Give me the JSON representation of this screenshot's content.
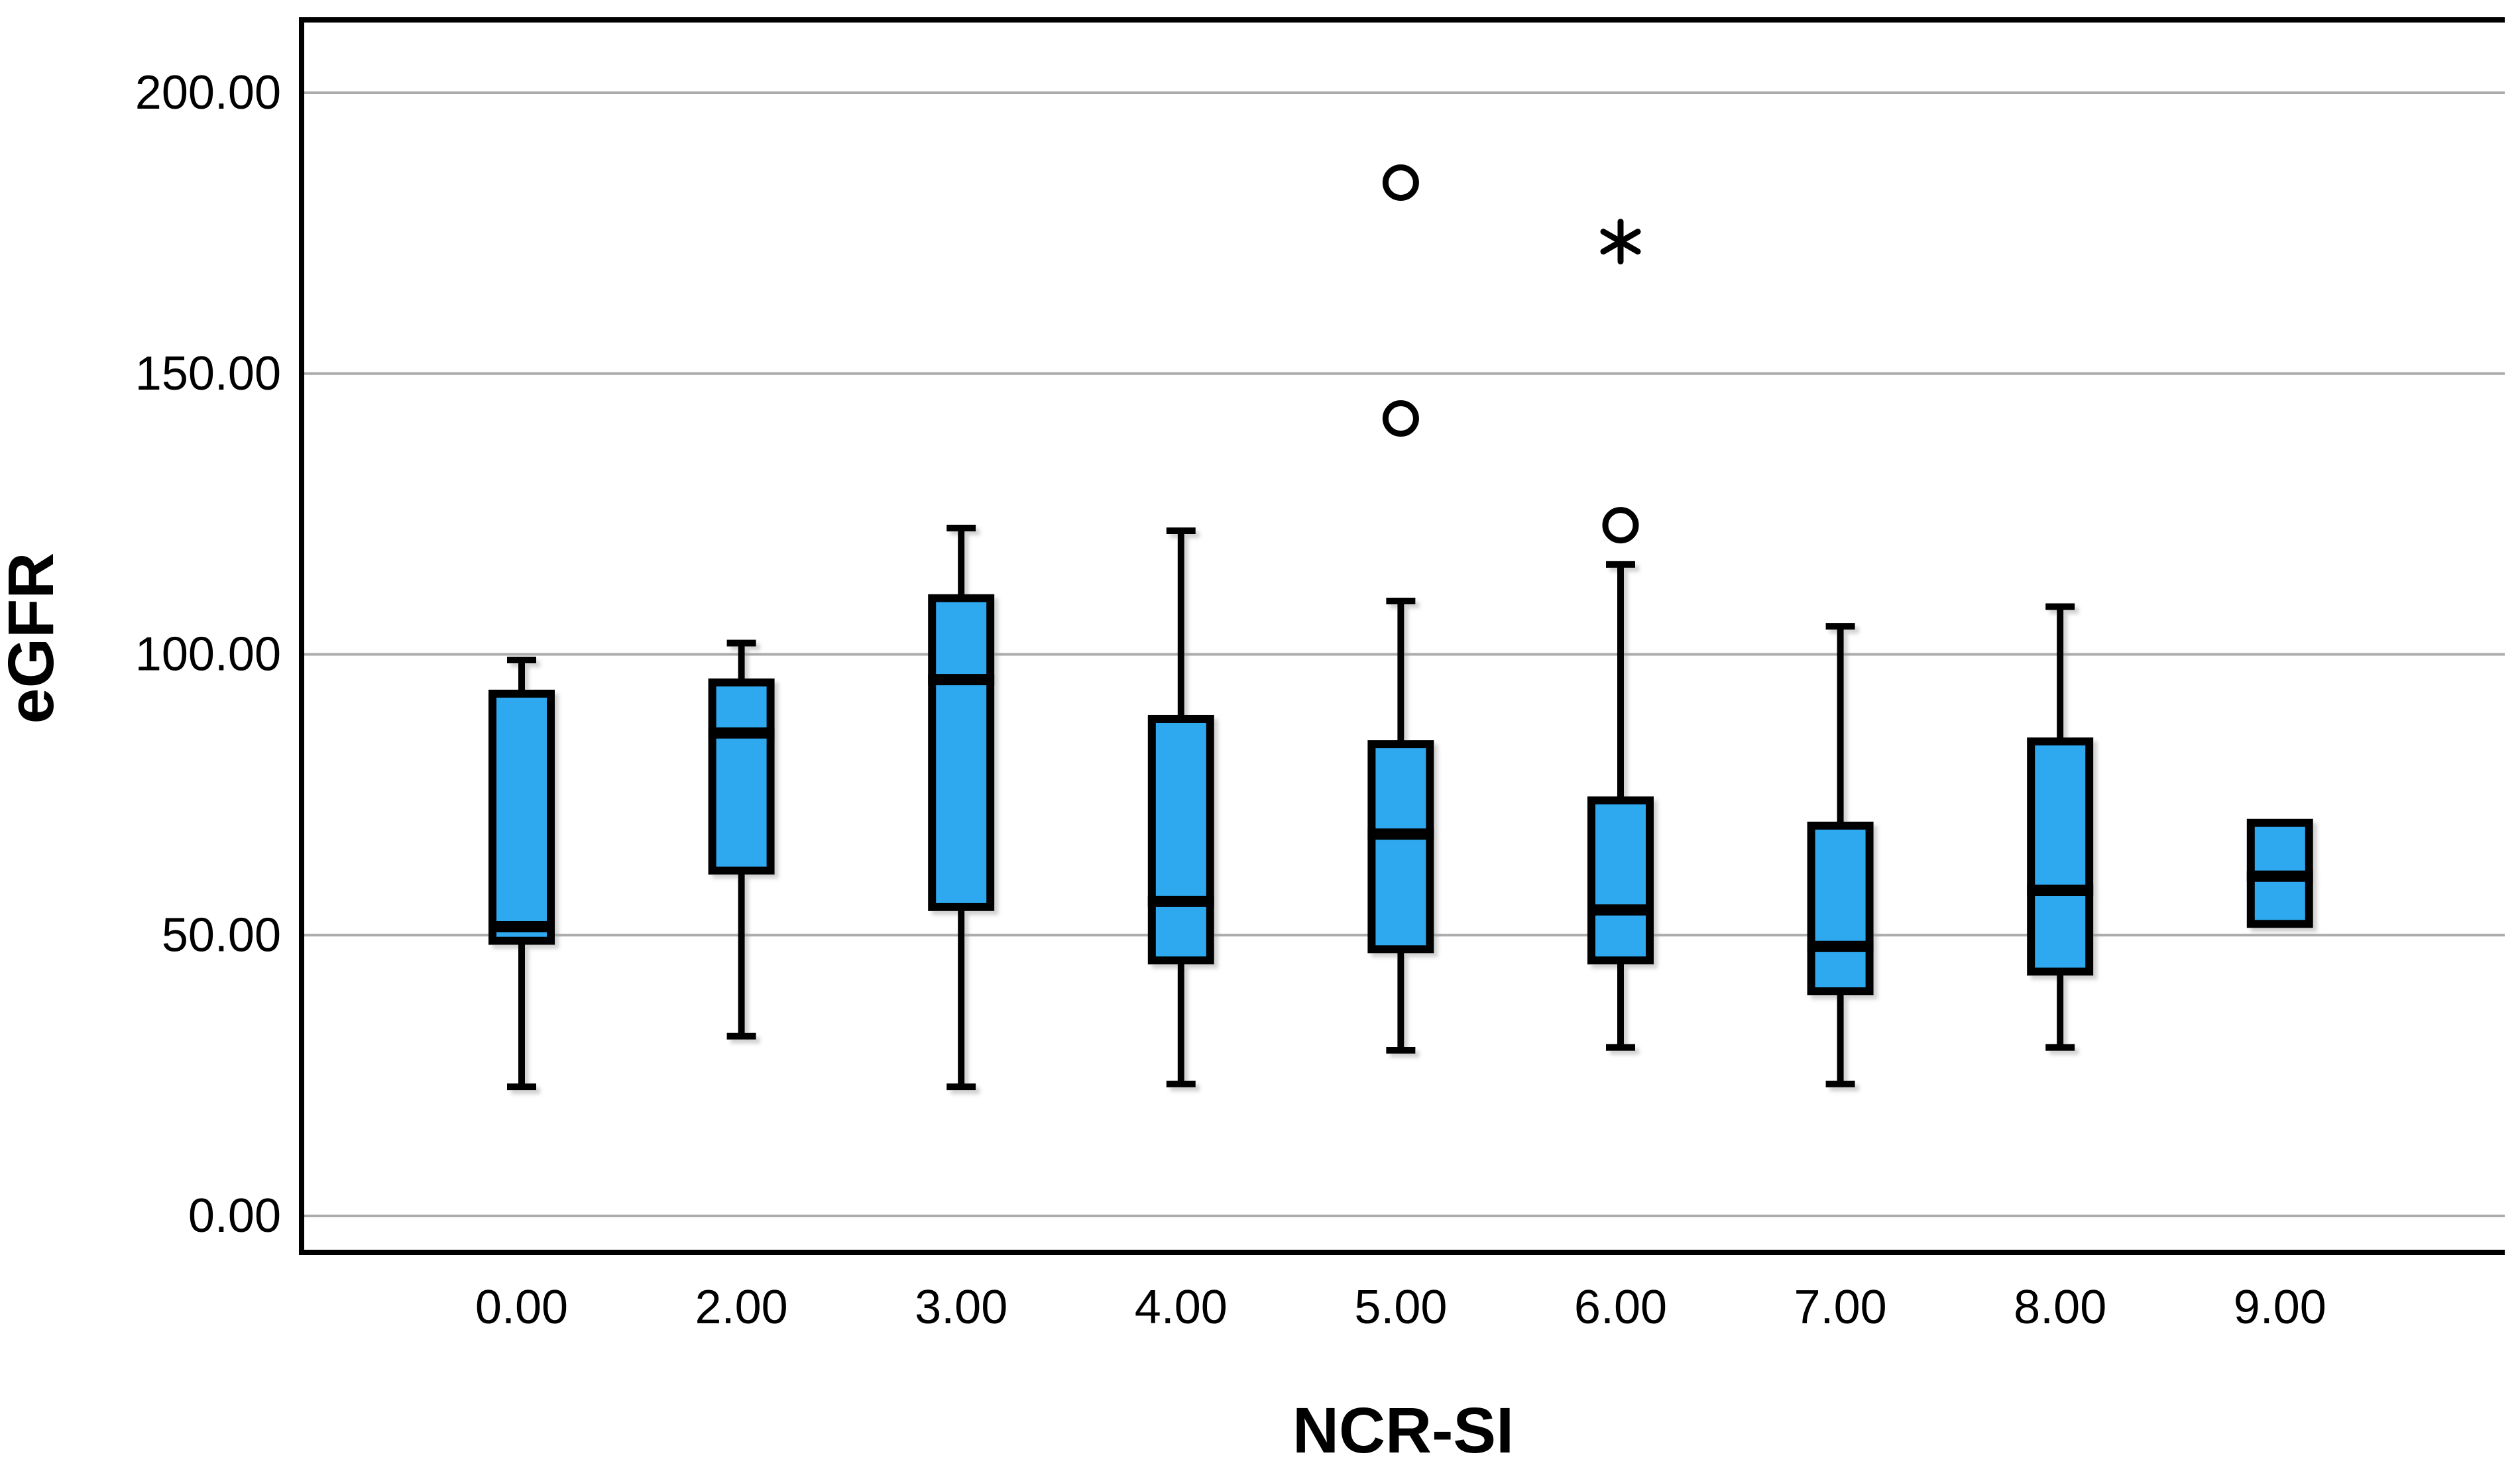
{
  "chart_data": {
    "type": "boxplot",
    "xlabel": "NCR-SI",
    "ylabel": "eGFR",
    "categories": [
      "0.00",
      "2.00",
      "3.00",
      "4.00",
      "5.00",
      "6.00",
      "7.00",
      "8.00",
      "9.00"
    ],
    "y_axis": {
      "min": 0,
      "max": 200,
      "tick_step": 50,
      "tick_labels": [
        "0.00",
        "50.00",
        "100.00",
        "150.00",
        "200.00"
      ],
      "grid": true
    },
    "boxes": [
      {
        "category": "0.00",
        "whisker_low": 23,
        "q1": 49,
        "median": 51.5,
        "q3": 93,
        "whisker_high": 99,
        "outliers": []
      },
      {
        "category": "2.00",
        "whisker_low": 32,
        "q1": 61.5,
        "median": 86,
        "q3": 95,
        "whisker_high": 102,
        "outliers": []
      },
      {
        "category": "3.00",
        "whisker_low": 23,
        "q1": 55,
        "median": 95.5,
        "q3": 110,
        "whisker_high": 122.5,
        "outliers": []
      },
      {
        "category": "4.00",
        "whisker_low": 23.5,
        "q1": 45.5,
        "median": 56,
        "q3": 88.5,
        "whisker_high": 122,
        "outliers": []
      },
      {
        "category": "5.00",
        "whisker_low": 29.5,
        "q1": 47.5,
        "median": 68,
        "q3": 84,
        "whisker_high": 109.5,
        "outliers": [
          {
            "value": 184,
            "marker": "circle"
          },
          {
            "value": 142,
            "marker": "circle"
          }
        ]
      },
      {
        "category": "6.00",
        "whisker_low": 30,
        "q1": 45.5,
        "median": 54.5,
        "q3": 74,
        "whisker_high": 116,
        "outliers": [
          {
            "value": 173.5,
            "marker": "asterisk"
          },
          {
            "value": 123,
            "marker": "circle"
          }
        ]
      },
      {
        "category": "7.00",
        "whisker_low": 23.5,
        "q1": 40,
        "median": 48,
        "q3": 69.5,
        "whisker_high": 105,
        "outliers": []
      },
      {
        "category": "8.00",
        "whisker_low": 30,
        "q1": 43.5,
        "median": 58,
        "q3": 84.5,
        "whisker_high": 108.5,
        "outliers": []
      },
      {
        "category": "9.00",
        "whisker_low": null,
        "q1": 52,
        "median": 60.5,
        "q3": 70,
        "whisker_high": null,
        "outliers": []
      }
    ],
    "legend": null,
    "title": null
  },
  "colors": {
    "box_fill": "#2FA9F0",
    "box_border": "#000000",
    "median": "#000000",
    "whisker": "#000000",
    "gridline": "#ABABAB",
    "axis": "#000000",
    "background": "#FFFFFF",
    "outlier_stroke": "#000000"
  }
}
